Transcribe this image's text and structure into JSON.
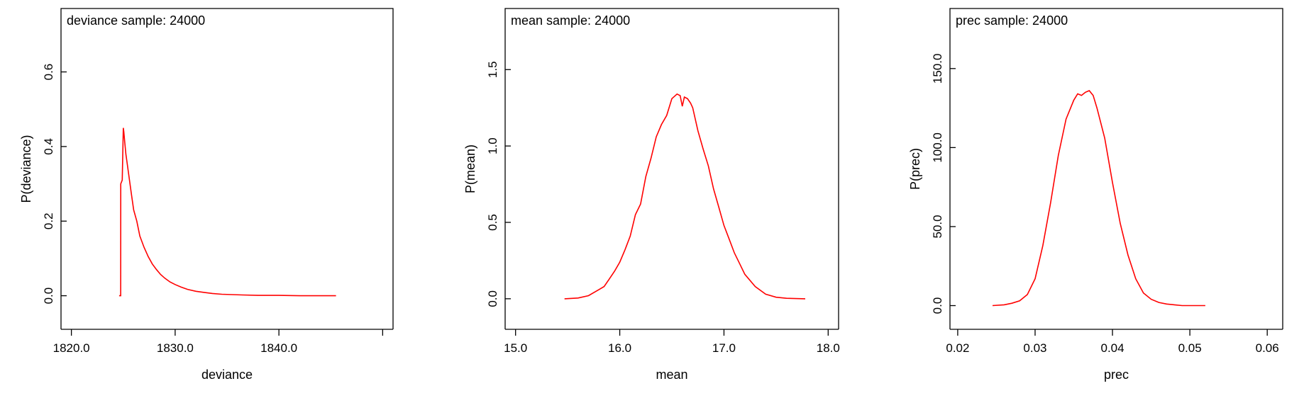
{
  "chart_data": [
    {
      "type": "line",
      "title": "deviance sample: 24000",
      "xlabel": "deviance",
      "ylabel": "P(deviance)",
      "xlim": [
        1819,
        1851
      ],
      "ylim": [
        -0.09,
        0.77
      ],
      "xticks": [
        {
          "v": 1820,
          "label": "1820.0"
        },
        {
          "v": 1830,
          "label": "1830.0"
        },
        {
          "v": 1840,
          "label": "1840.0"
        },
        {
          "v": 1850,
          "label": ""
        }
      ],
      "yticks": [
        {
          "v": 0.0,
          "label": "0.0"
        },
        {
          "v": 0.2,
          "label": "0.2"
        },
        {
          "v": 0.4,
          "label": "0.4"
        },
        {
          "v": 0.6,
          "label": "0.6"
        }
      ],
      "color": "#ff0000",
      "series": [
        {
          "x": [
            1824.6,
            1824.75,
            1824.76,
            1824.9,
            1825.0,
            1825.05,
            1825.15,
            1825.25,
            1825.4,
            1825.6,
            1825.8,
            1826.0,
            1826.3,
            1826.6,
            1827.0,
            1827.4,
            1827.8,
            1828.2,
            1828.6,
            1829.0,
            1829.5,
            1830.0,
            1830.6,
            1831.2,
            1832.0,
            1832.8,
            1833.6,
            1834.5,
            1835.5,
            1836.5,
            1838.0,
            1840.0,
            1842.0,
            1845.5
          ],
          "y": [
            0.0,
            0.0,
            0.3,
            0.31,
            0.45,
            0.44,
            0.41,
            0.38,
            0.35,
            0.31,
            0.27,
            0.23,
            0.2,
            0.16,
            0.13,
            0.105,
            0.085,
            0.07,
            0.057,
            0.047,
            0.037,
            0.03,
            0.023,
            0.017,
            0.012,
            0.009,
            0.006,
            0.004,
            0.003,
            0.002,
            0.001,
            0.001,
            0.0,
            0.0
          ]
        }
      ]
    },
    {
      "type": "line",
      "title": "mean sample: 24000",
      "xlabel": "mean",
      "ylabel": "P(mean)",
      "xlim": [
        14.9,
        18.1
      ],
      "ylim": [
        -0.2,
        1.9
      ],
      "xticks": [
        {
          "v": 15,
          "label": "15.0"
        },
        {
          "v": 16,
          "label": "16.0"
        },
        {
          "v": 17,
          "label": "17.0"
        },
        {
          "v": 18,
          "label": "18.0"
        }
      ],
      "yticks": [
        {
          "v": 0.0,
          "label": "0.0"
        },
        {
          "v": 0.5,
          "label": "0.5"
        },
        {
          "v": 1.0,
          "label": "1.0"
        },
        {
          "v": 1.5,
          "label": "1.5"
        }
      ],
      "color": "#ff0000",
      "series": [
        {
          "x": [
            15.47,
            15.6,
            15.7,
            15.8,
            15.85,
            15.9,
            15.95,
            16.0,
            16.05,
            16.1,
            16.15,
            16.2,
            16.25,
            16.3,
            16.35,
            16.4,
            16.45,
            16.5,
            16.55,
            16.58,
            16.6,
            16.62,
            16.65,
            16.68,
            16.7,
            16.75,
            16.8,
            16.85,
            16.9,
            16.95,
            17.0,
            17.05,
            17.1,
            17.15,
            17.2,
            17.3,
            17.4,
            17.5,
            17.6,
            17.78
          ],
          "y": [
            0.0,
            0.005,
            0.02,
            0.06,
            0.08,
            0.13,
            0.18,
            0.24,
            0.32,
            0.41,
            0.55,
            0.62,
            0.8,
            0.92,
            1.06,
            1.14,
            1.2,
            1.31,
            1.34,
            1.33,
            1.26,
            1.32,
            1.31,
            1.28,
            1.25,
            1.1,
            0.98,
            0.87,
            0.72,
            0.6,
            0.48,
            0.39,
            0.3,
            0.23,
            0.16,
            0.08,
            0.03,
            0.01,
            0.003,
            0.0
          ]
        }
      ]
    },
    {
      "type": "line",
      "title": "prec sample: 24000",
      "xlabel": "prec",
      "ylabel": "P(prec)",
      "xlim": [
        0.019,
        0.062
      ],
      "ylim": [
        -15,
        188
      ],
      "xticks": [
        {
          "v": 0.02,
          "label": "0.02"
        },
        {
          "v": 0.03,
          "label": "0.03"
        },
        {
          "v": 0.04,
          "label": "0.04"
        },
        {
          "v": 0.05,
          "label": "0.05"
        },
        {
          "v": 0.06,
          "label": "0.06"
        }
      ],
      "yticks": [
        {
          "v": 0,
          "label": "0.0"
        },
        {
          "v": 50,
          "label": "50.0"
        },
        {
          "v": 100,
          "label": "100.0"
        },
        {
          "v": 150,
          "label": "150.0"
        }
      ],
      "color": "#ff0000",
      "series": [
        {
          "x": [
            0.0245,
            0.026,
            0.027,
            0.028,
            0.029,
            0.03,
            0.031,
            0.032,
            0.033,
            0.034,
            0.035,
            0.0355,
            0.036,
            0.0365,
            0.037,
            0.0375,
            0.038,
            0.039,
            0.04,
            0.041,
            0.042,
            0.043,
            0.044,
            0.045,
            0.046,
            0.047,
            0.048,
            0.049,
            0.052
          ],
          "y": [
            0.0,
            0.5,
            1.5,
            3.0,
            7.0,
            17.0,
            38.0,
            65.0,
            95.0,
            118.0,
            130.0,
            134.0,
            133.0,
            135.0,
            136.0,
            133.0,
            125.0,
            106.0,
            78.0,
            52.0,
            32.0,
            17.0,
            8.0,
            4.0,
            2.0,
            1.0,
            0.5,
            0.0,
            0.0
          ]
        }
      ]
    }
  ]
}
